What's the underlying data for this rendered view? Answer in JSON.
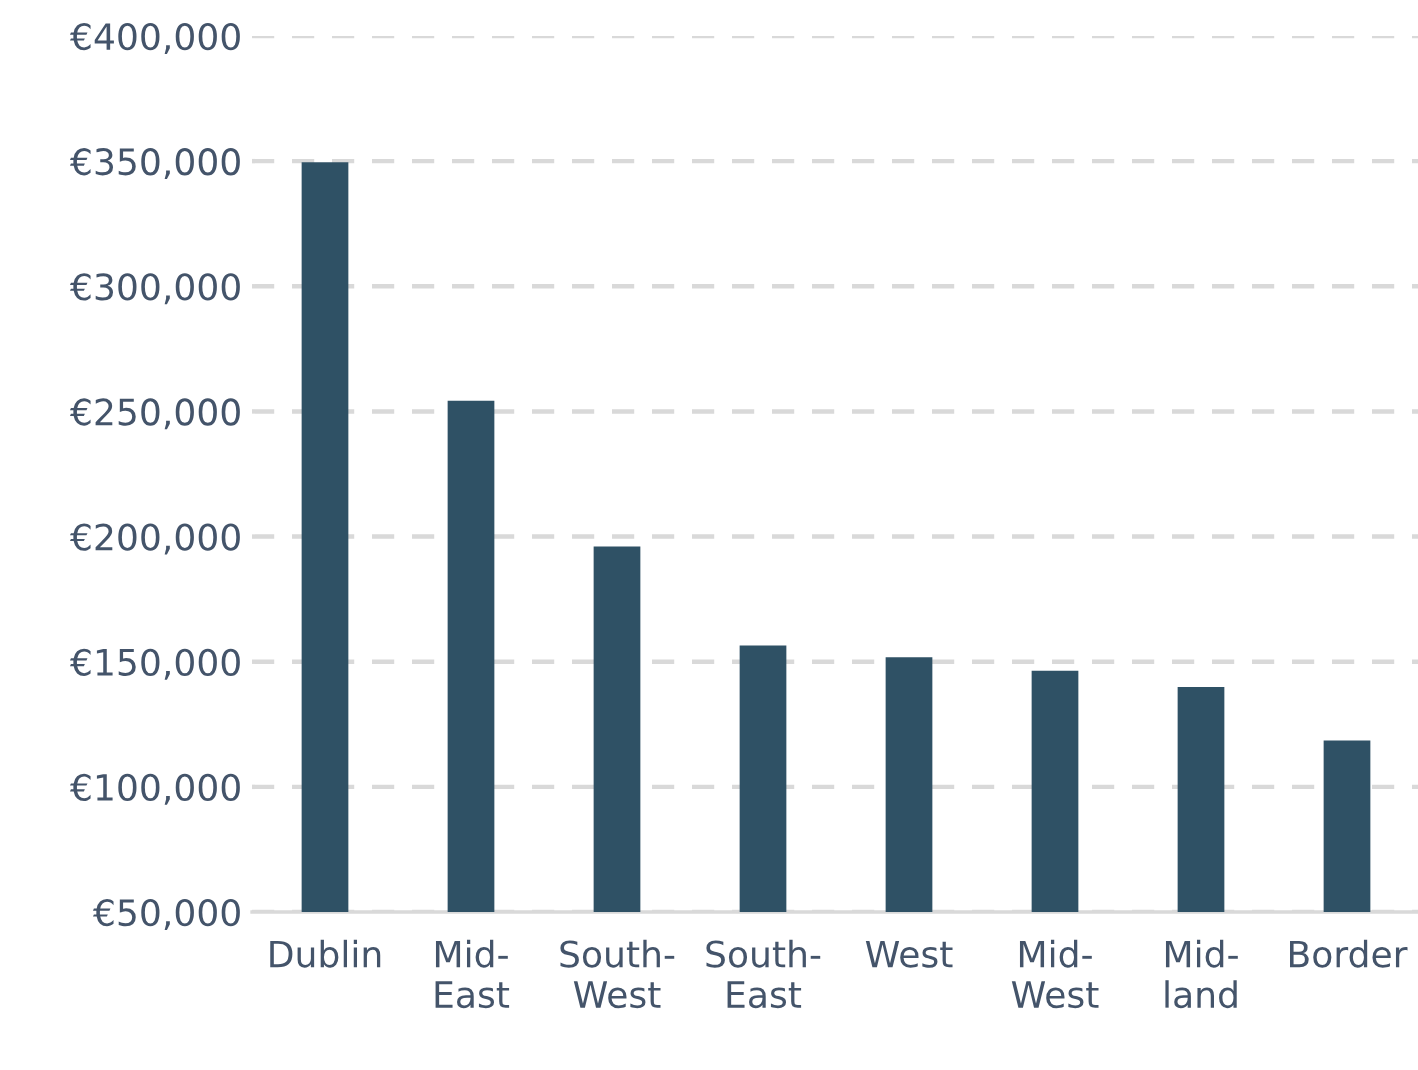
{
  "chart_data": {
    "type": "bar",
    "categories": [
      "Dublin",
      "Mid-East",
      "South-West",
      "South-East",
      "West",
      "Mid-West",
      "Mid-land",
      "Border"
    ],
    "values": [
      349600,
      254300,
      196000,
      156500,
      151800,
      146400,
      139900,
      118500
    ],
    "color": "#2f5165",
    "ylim": [
      50000,
      400000
    ],
    "yticks": [
      {
        "value": 50000,
        "label": "€50,000"
      },
      {
        "value": 100000,
        "label": "€100,000"
      },
      {
        "value": 150000,
        "label": "€150,000"
      },
      {
        "value": 200000,
        "label": "€200,000"
      },
      {
        "value": 250000,
        "label": "€250,000"
      },
      {
        "value": 300000,
        "label": "€300,000"
      },
      {
        "value": 350000,
        "label": "€350,000"
      },
      {
        "value": 400000,
        "label": "€400,000"
      }
    ],
    "grid": "y"
  }
}
